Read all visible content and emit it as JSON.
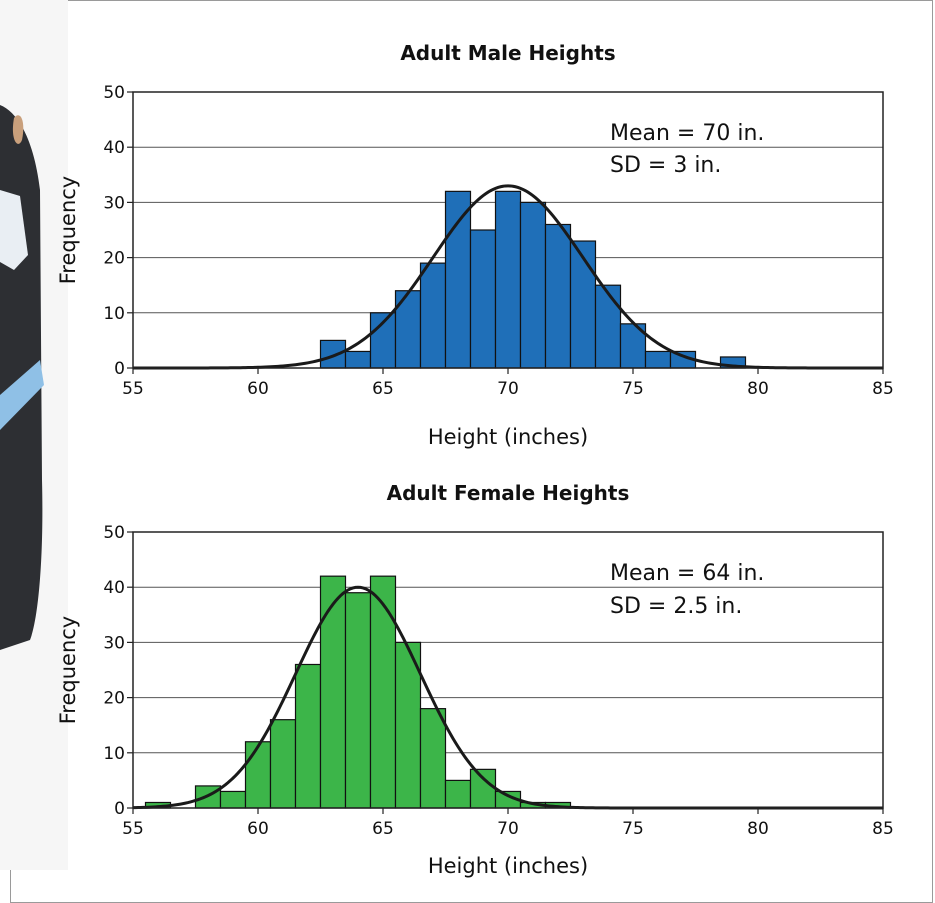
{
  "colors": {
    "male_bar": "#1f6fb8",
    "female_bar": "#3cb549",
    "curve": "#1a1a1a",
    "grid": "#555555",
    "frame_border": "#999999"
  },
  "chart_data": [
    {
      "type": "bar",
      "title": "Adult Male Heights",
      "xlabel": "Height (inches)",
      "ylabel": "Frequency",
      "xlim": [
        55,
        85
      ],
      "ylim": [
        0,
        50
      ],
      "x_ticks": [
        55,
        60,
        65,
        70,
        75,
        80,
        85
      ],
      "y_ticks": [
        0,
        10,
        20,
        30,
        40,
        50
      ],
      "grid": "horizontal",
      "bin_width": 1,
      "bins": [
        {
          "start": 62.5,
          "value": 5
        },
        {
          "start": 63.5,
          "value": 3
        },
        {
          "start": 64.5,
          "value": 10
        },
        {
          "start": 65.5,
          "value": 14
        },
        {
          "start": 66.5,
          "value": 19
        },
        {
          "start": 67.5,
          "value": 32
        },
        {
          "start": 68.5,
          "value": 25
        },
        {
          "start": 69.5,
          "value": 32
        },
        {
          "start": 70.5,
          "value": 30
        },
        {
          "start": 71.5,
          "value": 26
        },
        {
          "start": 72.5,
          "value": 23
        },
        {
          "start": 73.5,
          "value": 15
        },
        {
          "start": 74.5,
          "value": 8
        },
        {
          "start": 75.5,
          "value": 3
        },
        {
          "start": 76.5,
          "value": 3
        },
        {
          "start": 77.5,
          "value": 0
        },
        {
          "start": 78.5,
          "value": 2
        }
      ],
      "curve": {
        "mean": 70,
        "sd": 3,
        "peak": 33
      },
      "annotations": [
        "Mean = 70 in.",
        "SD = 3 in."
      ]
    },
    {
      "type": "bar",
      "title": "Adult Female Heights",
      "xlabel": "Height (inches)",
      "ylabel": "Frequency",
      "xlim": [
        55,
        85
      ],
      "ylim": [
        0,
        50
      ],
      "x_ticks": [
        55,
        60,
        65,
        70,
        75,
        80,
        85
      ],
      "y_ticks": [
        0,
        10,
        20,
        30,
        40,
        50
      ],
      "grid": "horizontal",
      "bin_width": 1,
      "bins": [
        {
          "start": 55.5,
          "value": 1
        },
        {
          "start": 56.5,
          "value": 0
        },
        {
          "start": 57.5,
          "value": 4
        },
        {
          "start": 58.5,
          "value": 3
        },
        {
          "start": 59.5,
          "value": 12
        },
        {
          "start": 60.5,
          "value": 16
        },
        {
          "start": 61.5,
          "value": 26
        },
        {
          "start": 62.5,
          "value": 42
        },
        {
          "start": 63.5,
          "value": 39
        },
        {
          "start": 64.5,
          "value": 42
        },
        {
          "start": 65.5,
          "value": 30
        },
        {
          "start": 66.5,
          "value": 18
        },
        {
          "start": 67.5,
          "value": 5
        },
        {
          "start": 68.5,
          "value": 7
        },
        {
          "start": 69.5,
          "value": 3
        },
        {
          "start": 70.5,
          "value": 1
        },
        {
          "start": 71.5,
          "value": 1
        }
      ],
      "curve": {
        "mean": 64,
        "sd": 2.5,
        "peak": 40
      },
      "annotations": [
        "Mean = 64 in.",
        "SD = 2.5 in."
      ]
    }
  ]
}
